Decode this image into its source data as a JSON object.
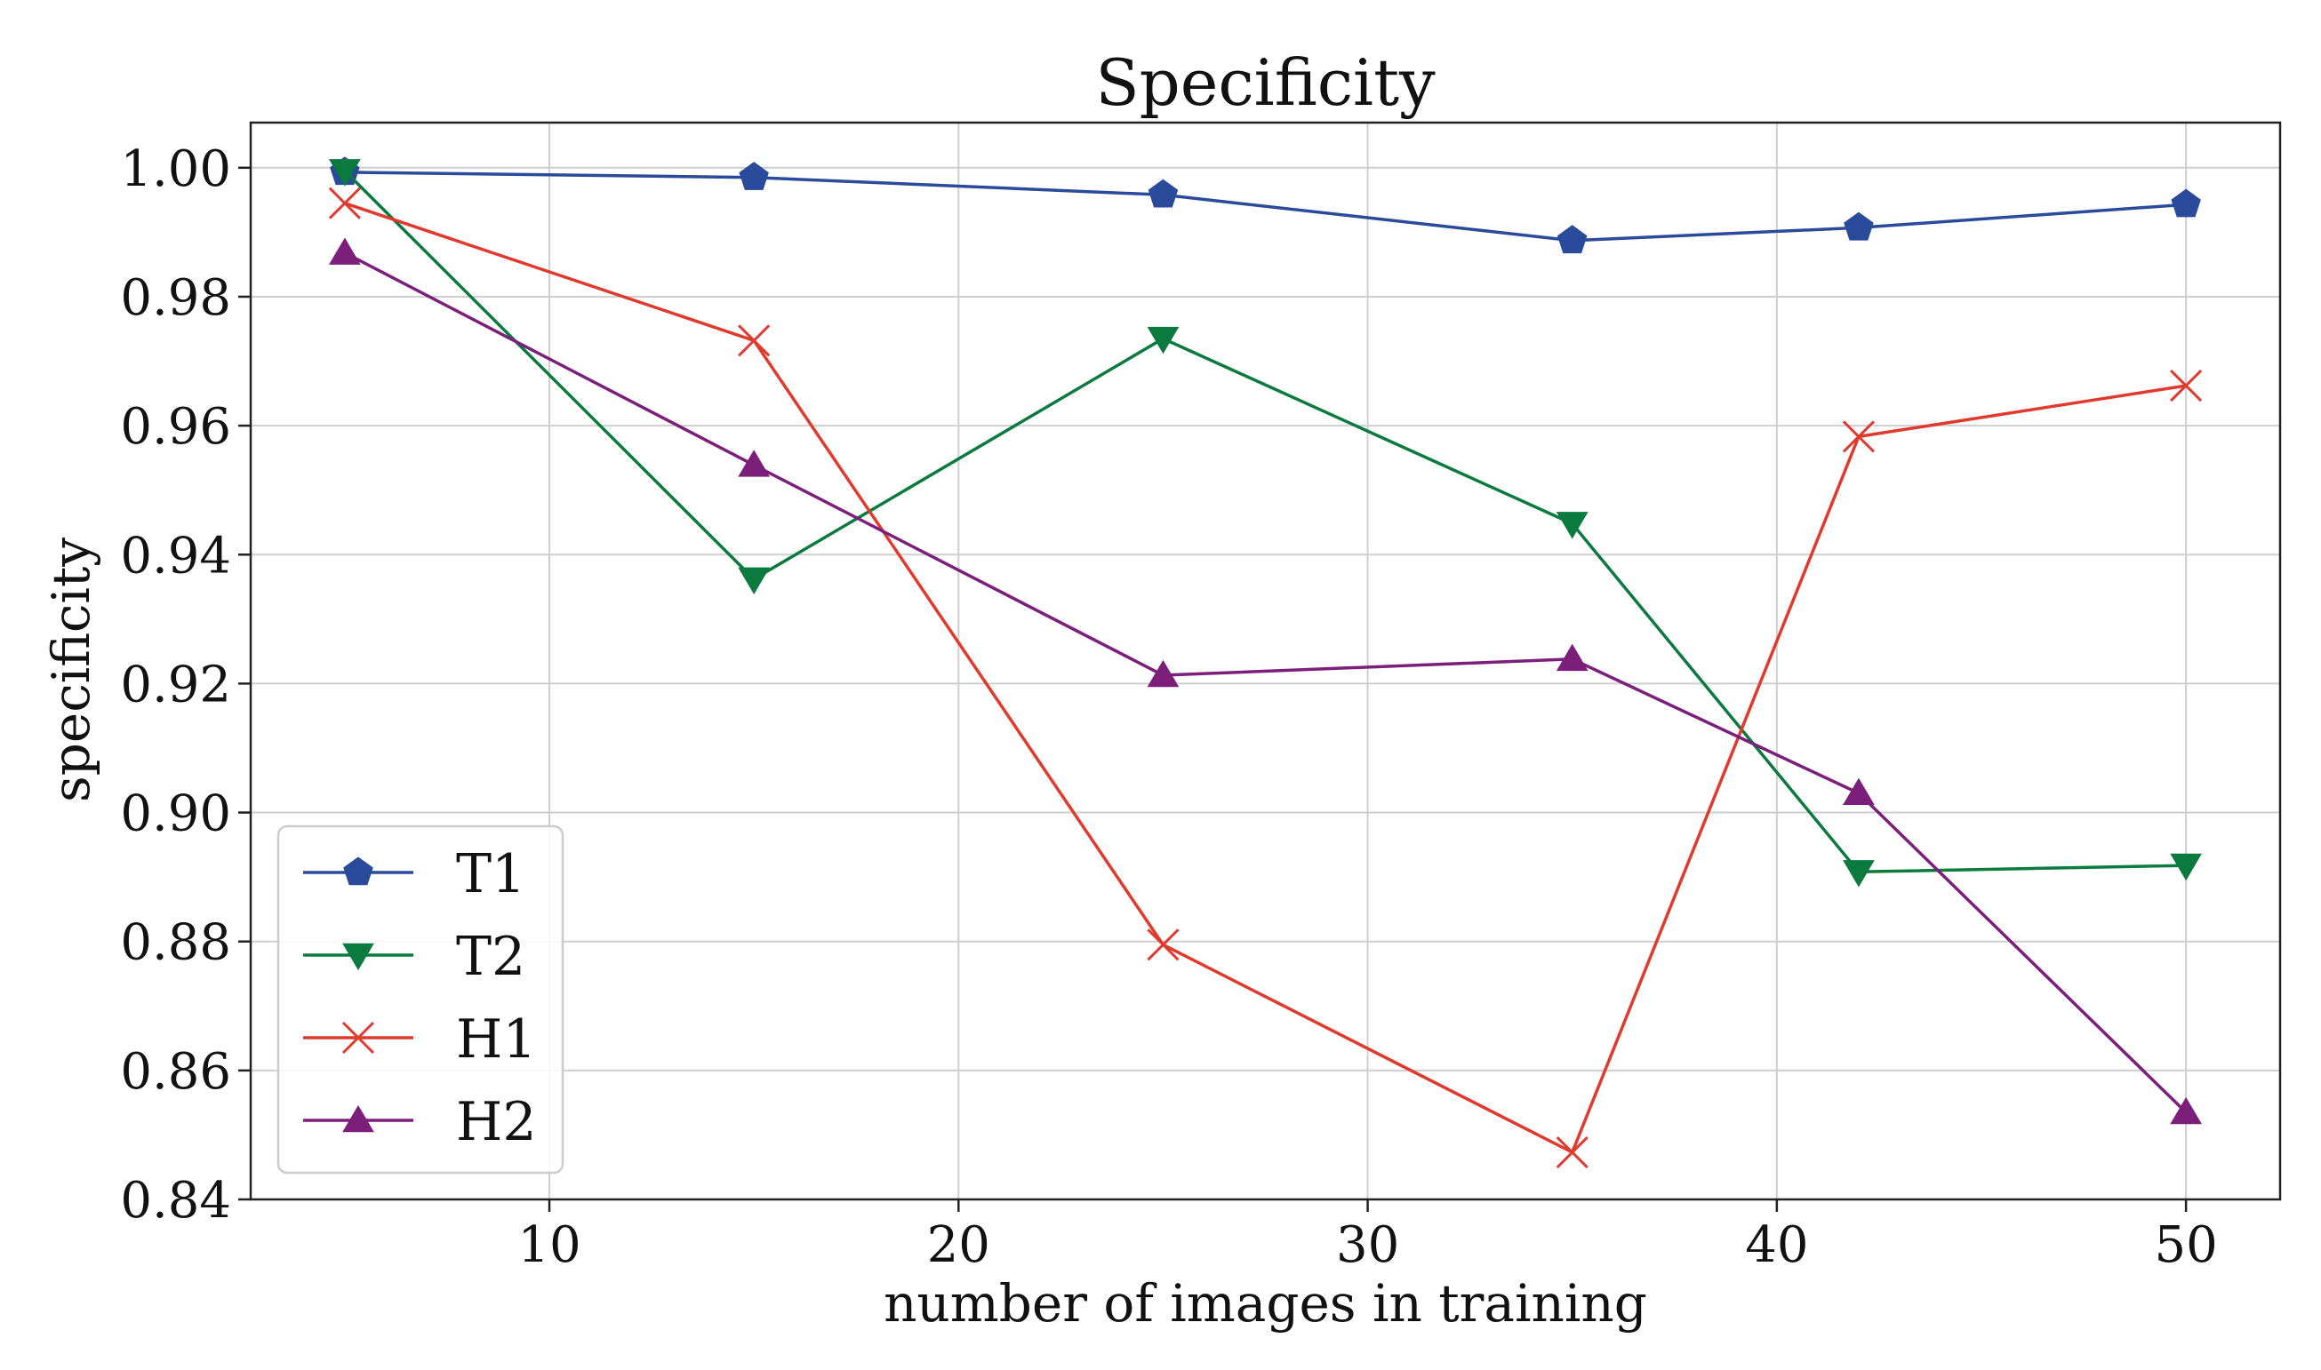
{
  "chart_data": {
    "type": "line",
    "title": "Specificity",
    "xlabel": "number of images in training",
    "ylabel": "specificity",
    "x": [
      5,
      15,
      25,
      35,
      42,
      50
    ],
    "xlim": [
      2.7,
      52.3
    ],
    "ylim": [
      0.84,
      1.007
    ],
    "xticks": [
      10,
      20,
      30,
      40,
      50
    ],
    "xtick_labels": [
      "10",
      "20",
      "30",
      "40",
      "50"
    ],
    "yticks": [
      0.84,
      0.86,
      0.88,
      0.9,
      0.92,
      0.94,
      0.96,
      0.98,
      1.0
    ],
    "ytick_labels": [
      "0.84",
      "0.86",
      "0.88",
      "0.90",
      "0.92",
      "0.94",
      "0.96",
      "0.98",
      "1.00"
    ],
    "grid": true,
    "legend_position": "lower-left",
    "series": [
      {
        "name": "T1",
        "color": "#2a4b9b",
        "marker": "pentagon",
        "values": [
          0.9993,
          0.9985,
          0.9958,
          0.9887,
          0.9907,
          0.9943
        ]
      },
      {
        "name": "T2",
        "color": "#0a7a3e",
        "marker": "triangle-down",
        "values": [
          0.9995,
          0.9362,
          0.9735,
          0.9448,
          0.8908,
          0.8918
        ]
      },
      {
        "name": "H1",
        "color": "#e03a2e",
        "marker": "x",
        "values": [
          0.9945,
          0.9732,
          0.8795,
          0.8473,
          0.9583,
          0.9662
        ]
      },
      {
        "name": "H2",
        "color": "#7b1f7b",
        "marker": "triangle-up",
        "values": [
          0.9868,
          0.9539,
          0.9213,
          0.9238,
          0.903,
          0.8535
        ]
      }
    ]
  }
}
